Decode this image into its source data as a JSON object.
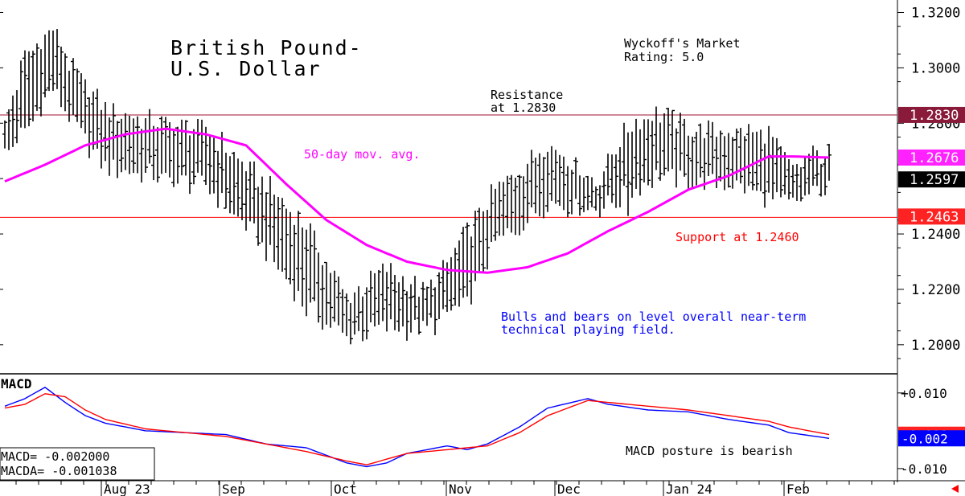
{
  "chart_data": [
    {
      "type": "ohlc",
      "title": [
        "British Pound-",
        "U.S. Dollar"
      ],
      "rating": [
        "Wyckoff's Market",
        "Rating: 5.0"
      ],
      "ylim": [
        1.1895,
        1.3245
      ],
      "y_ticks": [
        {
          "value": 1.32,
          "label": "1.3200"
        },
        {
          "value": 1.3,
          "label": "1.3000"
        },
        {
          "value": 1.28,
          "label": "1.2800"
        },
        {
          "value": 1.24,
          "label": "1.2400"
        },
        {
          "value": 1.22,
          "label": "1.2200"
        },
        {
          "value": 1.2,
          "label": "1.2000"
        }
      ],
      "x_ticks": [
        "Aug 23",
        "Sep",
        "Oct",
        "Nov",
        "Dec",
        "Jan 24",
        "Feb"
      ],
      "price_tags": [
        {
          "value": 1.283,
          "label": "1.2830",
          "color": "#8a1a3a"
        },
        {
          "value": 1.2676,
          "label": "1.2676",
          "color": "#ff22ff"
        },
        {
          "value": 1.2597,
          "label": "1.2597",
          "color": "#000000"
        },
        {
          "value": 1.2463,
          "label": "1.2463",
          "color": "#ff2222"
        }
      ],
      "resistance": {
        "value": 1.283,
        "label": [
          "Resistance",
          "at 1.2830"
        ]
      },
      "support": {
        "value": 1.246,
        "label": "Support at 1.2460"
      },
      "ma_label": "50-day mov. avg.",
      "annotation": [
        "Bulls and bears on level overall near-term",
        "technical playing field."
      ],
      "colors": {
        "bars": "#000000",
        "ma": "#ff00ff",
        "support": "#ff0000",
        "resistance": "#a01030",
        "note": "#0000ff"
      },
      "bar_keys": [
        [
          0,
          1.279,
          1.27
        ],
        [
          5,
          1.303,
          1.278
        ],
        [
          12,
          1.313,
          1.293
        ],
        [
          17,
          1.298,
          1.281
        ],
        [
          25,
          1.284,
          1.265
        ],
        [
          37,
          1.28,
          1.262
        ],
        [
          50,
          1.277,
          1.258
        ],
        [
          62,
          1.261,
          1.241
        ],
        [
          75,
          1.242,
          1.214
        ],
        [
          85,
          1.216,
          1.204
        ],
        [
          95,
          1.226,
          1.207
        ],
        [
          105,
          1.218,
          1.207
        ],
        [
          115,
          1.24,
          1.216
        ],
        [
          122,
          1.254,
          1.237
        ],
        [
          135,
          1.272,
          1.252
        ],
        [
          147,
          1.258,
          1.25
        ],
        [
          155,
          1.278,
          1.255
        ],
        [
          162,
          1.283,
          1.262
        ],
        [
          172,
          1.277,
          1.26
        ],
        [
          182,
          1.276,
          1.259
        ],
        [
          190,
          1.275,
          1.253
        ],
        [
          196,
          1.262,
          1.252
        ],
        [
          200,
          1.267,
          1.255
        ],
        [
          205,
          1.268,
          1.258
        ]
      ],
      "ma_keys": [
        [
          0,
          1.259
        ],
        [
          10,
          1.265
        ],
        [
          20,
          1.272
        ],
        [
          30,
          1.276
        ],
        [
          40,
          1.278
        ],
        [
          50,
          1.276
        ],
        [
          60,
          1.272
        ],
        [
          70,
          1.258
        ],
        [
          80,
          1.245
        ],
        [
          90,
          1.236
        ],
        [
          100,
          1.23
        ],
        [
          110,
          1.227
        ],
        [
          120,
          1.226
        ],
        [
          130,
          1.228
        ],
        [
          140,
          1.233
        ],
        [
          150,
          1.241
        ],
        [
          160,
          1.248
        ],
        [
          170,
          1.256
        ],
        [
          180,
          1.261
        ],
        [
          190,
          1.268
        ],
        [
          196,
          1.268
        ],
        [
          205,
          1.2676
        ]
      ]
    },
    {
      "type": "line",
      "title": "MACD",
      "ylim": [
        -0.013,
        0.014
      ],
      "y_ticks": [
        {
          "value": 0.01,
          "label": "+0.010"
        },
        {
          "value": -0.01,
          "label": "-0.010"
        }
      ],
      "values_box": [
        "MACD=   -0.002000",
        "MACDA=  -0.001038"
      ],
      "posture_label": "MACD posture is bearish",
      "tag_red": {
        "value": -0.001038,
        "label": "-0.001"
      },
      "tag_blue": {
        "value": -0.002,
        "label": "-0.002"
      },
      "series": [
        {
          "name": "MACD",
          "color": "#0000ff",
          "keys": [
            [
              0,
              0.0065
            ],
            [
              5,
              0.0085
            ],
            [
              10,
              0.0115
            ],
            [
              15,
              0.0075
            ],
            [
              20,
              0.004
            ],
            [
              25,
              0.002
            ],
            [
              35,
              0.0
            ],
            [
              45,
              -0.0005
            ],
            [
              55,
              -0.001
            ],
            [
              65,
              -0.0035
            ],
            [
              75,
              -0.0045
            ],
            [
              85,
              -0.0085
            ],
            [
              90,
              -0.0095
            ],
            [
              95,
              -0.0085
            ],
            [
              100,
              -0.006
            ],
            [
              110,
              -0.004
            ],
            [
              115,
              -0.005
            ],
            [
              120,
              -0.0035
            ],
            [
              128,
              0.001
            ],
            [
              135,
              0.006
            ],
            [
              145,
              0.0085
            ],
            [
              150,
              0.007
            ],
            [
              160,
              0.0055
            ],
            [
              170,
              0.005
            ],
            [
              180,
              0.003
            ],
            [
              190,
              0.0015
            ],
            [
              195,
              -0.0005
            ],
            [
              205,
              -0.002
            ]
          ]
        },
        {
          "name": "MACDA",
          "color": "#ff0000",
          "keys": [
            [
              0,
              0.006
            ],
            [
              5,
              0.007
            ],
            [
              10,
              0.0098
            ],
            [
              15,
              0.009
            ],
            [
              20,
              0.0055
            ],
            [
              25,
              0.003
            ],
            [
              35,
              0.0005
            ],
            [
              45,
              -0.0005
            ],
            [
              55,
              -0.0015
            ],
            [
              65,
              -0.0035
            ],
            [
              75,
              -0.0055
            ],
            [
              85,
              -0.008
            ],
            [
              90,
              -0.009
            ],
            [
              95,
              -0.0075
            ],
            [
              100,
              -0.006
            ],
            [
              110,
              -0.005
            ],
            [
              115,
              -0.0045
            ],
            [
              120,
              -0.004
            ],
            [
              128,
              -0.0005
            ],
            [
              135,
              0.004
            ],
            [
              145,
              0.008
            ],
            [
              150,
              0.0075
            ],
            [
              160,
              0.0065
            ],
            [
              170,
              0.0055
            ],
            [
              180,
              0.004
            ],
            [
              190,
              0.0025
            ],
            [
              195,
              0.001
            ],
            [
              205,
              -0.001
            ]
          ]
        }
      ]
    }
  ]
}
